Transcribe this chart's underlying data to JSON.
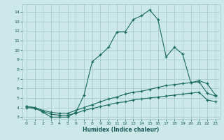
{
  "xlabel": "Humidex (Indice chaleur)",
  "bg_color": "#cce8e8",
  "grid_color": "#aacccc",
  "line_color": "#1a6b5a",
  "xlim": [
    -0.5,
    23.5
  ],
  "ylim": [
    2.8,
    14.8
  ],
  "yticks": [
    3,
    4,
    5,
    6,
    7,
    8,
    9,
    10,
    11,
    12,
    13,
    14
  ],
  "xticks": [
    0,
    1,
    2,
    3,
    4,
    5,
    6,
    7,
    8,
    9,
    10,
    11,
    12,
    13,
    14,
    15,
    16,
    17,
    18,
    19,
    20,
    21,
    22,
    23
  ],
  "line1_x": [
    0,
    1,
    2,
    3,
    4,
    5,
    6,
    7,
    8,
    9,
    10,
    11,
    12,
    13,
    14,
    15,
    16,
    17,
    18,
    19,
    20,
    21,
    22,
    23
  ],
  "line1_y": [
    4.1,
    4.0,
    3.5,
    3.0,
    3.0,
    3.0,
    3.5,
    5.3,
    8.8,
    9.5,
    10.3,
    11.9,
    11.9,
    13.2,
    13.6,
    14.2,
    13.2,
    9.3,
    10.3,
    9.6,
    6.6,
    6.8,
    6.5,
    5.3
  ],
  "line2_x": [
    0,
    1,
    2,
    3,
    4,
    5,
    6,
    7,
    8,
    9,
    10,
    11,
    12,
    13,
    14,
    15,
    16,
    17,
    18,
    19,
    20,
    21,
    22,
    23
  ],
  "line2_y": [
    4.1,
    4.0,
    3.7,
    3.5,
    3.4,
    3.4,
    3.7,
    4.0,
    4.3,
    4.6,
    4.9,
    5.1,
    5.4,
    5.6,
    5.7,
    5.9,
    6.1,
    6.3,
    6.4,
    6.5,
    6.6,
    6.7,
    5.5,
    5.2
  ],
  "line3_x": [
    0,
    1,
    2,
    3,
    4,
    5,
    6,
    7,
    8,
    9,
    10,
    11,
    12,
    13,
    14,
    15,
    16,
    17,
    18,
    19,
    20,
    21,
    22,
    23
  ],
  "line3_y": [
    4.0,
    3.9,
    3.6,
    3.3,
    3.2,
    3.2,
    3.4,
    3.7,
    3.9,
    4.1,
    4.3,
    4.5,
    4.6,
    4.8,
    4.9,
    5.0,
    5.1,
    5.2,
    5.3,
    5.4,
    5.5,
    5.6,
    4.8,
    4.6
  ]
}
